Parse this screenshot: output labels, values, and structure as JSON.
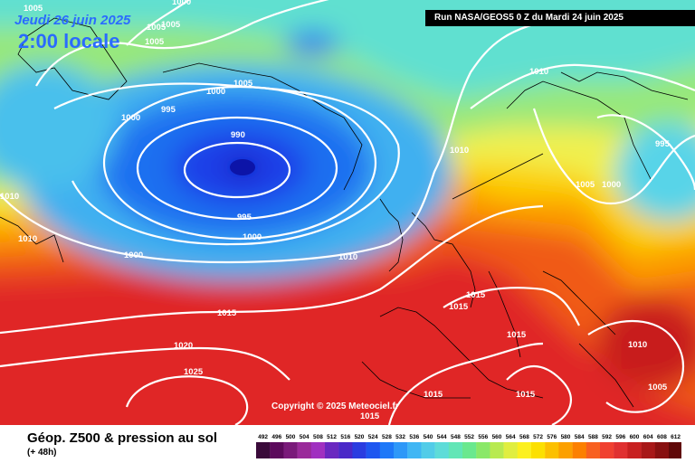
{
  "header": {
    "date": "Jeudi 26 juin 2025",
    "local_time": "2:00 locale",
    "run_info": "Run NASA/GEOS5 0 Z du Mardi 24 juin 2025"
  },
  "copyright": "Copyright © 2025 Meteociel.fr",
  "footer": {
    "title": "Géop. Z500 & pression au sol",
    "subtitle": "(+ 48h)"
  },
  "isobar_labels": [
    "1005",
    "1000",
    "1005",
    "1005",
    "1005",
    "1000",
    "995",
    "1000",
    "1005",
    "990",
    "995",
    "1000",
    "1010",
    "1010",
    "1000",
    "1010",
    "1010",
    "1015",
    "1015",
    "1020",
    "1025",
    "1015",
    "1015",
    "1015",
    "1015",
    "1015",
    "1010",
    "1005",
    "1000",
    "1005",
    "995",
    "1010",
    "1015"
  ],
  "legend": {
    "values": [
      "492",
      "496",
      "500",
      "504",
      "508",
      "512",
      "516",
      "520",
      "524",
      "528",
      "532",
      "536",
      "540",
      "544",
      "548",
      "552",
      "556",
      "560",
      "564",
      "568",
      "572",
      "576",
      "580",
      "584",
      "588",
      "592",
      "596",
      "600",
      "604",
      "608",
      "612"
    ],
    "colors": [
      "#3a0a3a",
      "#5c0a5c",
      "#7a1a7a",
      "#9a2a9a",
      "#a030c0",
      "#6a28c0",
      "#4a28c8",
      "#2a3ce0",
      "#1e56f0",
      "#1e78f8",
      "#2e98f8",
      "#40b6f4",
      "#52cce8",
      "#5edcd8",
      "#62e6b6",
      "#6ae88e",
      "#8ae868",
      "#b8ea50",
      "#e0ee40",
      "#fcf020",
      "#fce000",
      "#fcc000",
      "#fca000",
      "#fc8000",
      "#f86020",
      "#f04030",
      "#e03030",
      "#c82020",
      "#a81818",
      "#881010",
      "#600808"
    ]
  }
}
